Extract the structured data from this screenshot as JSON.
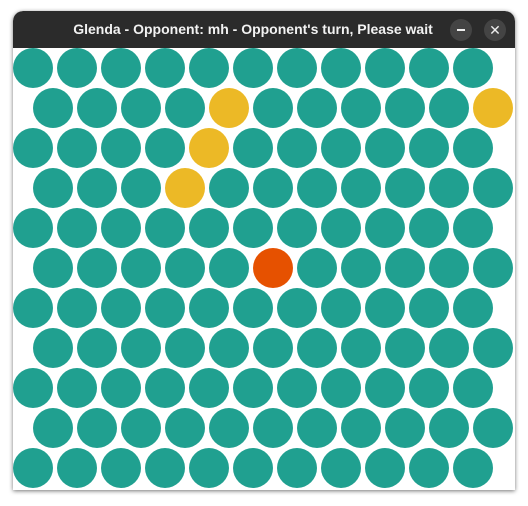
{
  "window": {
    "title": "Glenda - Opponent: mh - Opponent's turn, Please wait",
    "minimize_icon": "minimize-icon",
    "close_icon": "close-icon",
    "close_glyph": "✕"
  },
  "board": {
    "rows": 11,
    "cols": 11,
    "empty_color": "#20a090",
    "wall_color": "#ecb926",
    "glenda_color": "#e65100",
    "walls": [
      [
        1,
        4
      ],
      [
        1,
        10
      ],
      [
        2,
        4
      ],
      [
        3,
        3
      ]
    ],
    "glenda": [
      5,
      5
    ]
  }
}
